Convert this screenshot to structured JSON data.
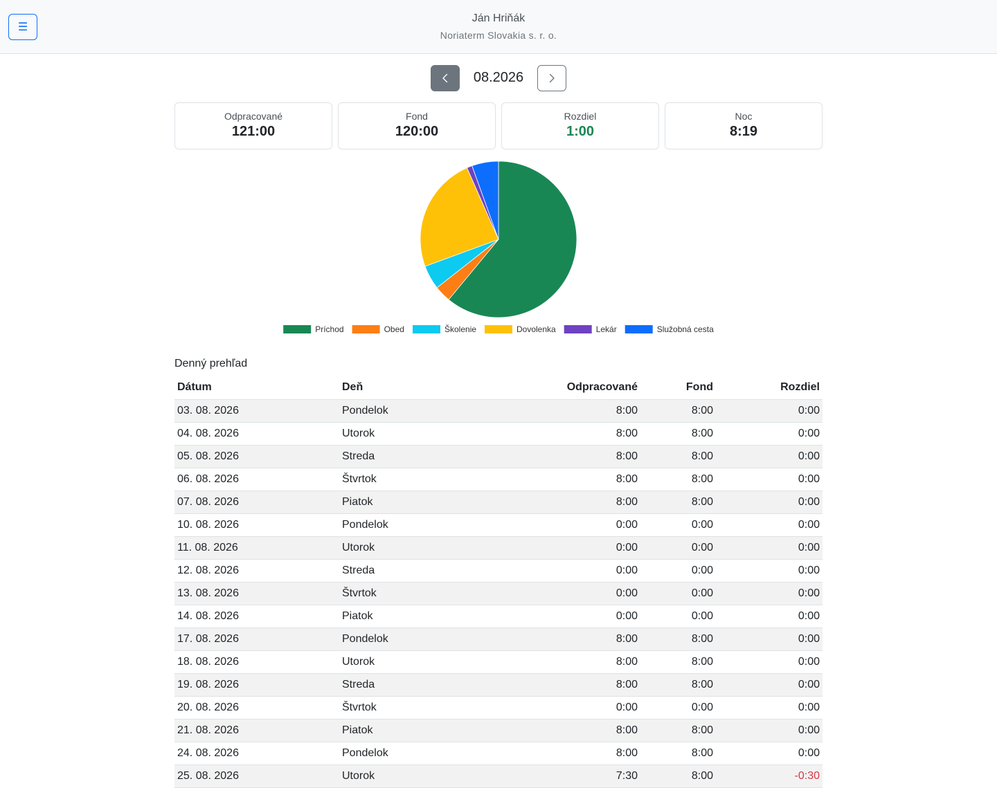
{
  "header": {
    "menu_icon": "☰",
    "user_name": "Ján Hriňák",
    "company": "Noriaterm Slovakia s. r. o."
  },
  "month_nav": {
    "label": "08.2026",
    "prev_icon": "chevron-left-icon",
    "next_icon": "chevron-right-icon"
  },
  "summary": {
    "worked_label": "Odpracované",
    "worked_value": "121:00",
    "fond_label": "Fond",
    "fond_value": "120:00",
    "diff_label": "Rozdiel",
    "diff_value": "1:00",
    "night_label": "Noc",
    "night_value": "8:19"
  },
  "colors": {
    "positive": "#198754",
    "negative": "#dc3545",
    "primary": "#0d6efd",
    "secondary": "#6c757d"
  },
  "chart_data": {
    "type": "pie",
    "slices": [
      {
        "name": "Príchod",
        "value": 61.0,
        "color": "#198754"
      },
      {
        "name": "Obed",
        "value": 3.4,
        "color": "#fd7e14"
      },
      {
        "name": "Školenie",
        "value": 5.0,
        "color": "#0dcaf0"
      },
      {
        "name": "Dovolenka",
        "value": 24.0,
        "color": "#ffc107"
      },
      {
        "name": "Lekár",
        "value": 1.1,
        "color": "#6f42c1"
      },
      {
        "name": "Služobná cesta",
        "value": 5.5,
        "color": "#0d6efd"
      }
    ],
    "legend": "bottom"
  },
  "daily": {
    "title": "Denný prehľad",
    "columns": [
      "Dátum",
      "Deň",
      "Odpracované",
      "Fond",
      "Rozdiel"
    ],
    "rows": [
      [
        "03. 08. 2026",
        "Pondelok",
        "8:00",
        "8:00",
        "0:00"
      ],
      [
        "04. 08. 2026",
        "Utorok",
        "8:00",
        "8:00",
        "0:00"
      ],
      [
        "05. 08. 2026",
        "Streda",
        "8:00",
        "8:00",
        "0:00"
      ],
      [
        "06. 08. 2026",
        "Štvrtok",
        "8:00",
        "8:00",
        "0:00"
      ],
      [
        "07. 08. 2026",
        "Piatok",
        "8:00",
        "8:00",
        "0:00"
      ],
      [
        "10. 08. 2026",
        "Pondelok",
        "0:00",
        "0:00",
        "0:00"
      ],
      [
        "11. 08. 2026",
        "Utorok",
        "0:00",
        "0:00",
        "0:00"
      ],
      [
        "12. 08. 2026",
        "Streda",
        "0:00",
        "0:00",
        "0:00"
      ],
      [
        "13. 08. 2026",
        "Štvrtok",
        "0:00",
        "0:00",
        "0:00"
      ],
      [
        "14. 08. 2026",
        "Piatok",
        "0:00",
        "0:00",
        "0:00"
      ],
      [
        "17. 08. 2026",
        "Pondelok",
        "8:00",
        "8:00",
        "0:00"
      ],
      [
        "18. 08. 2026",
        "Utorok",
        "8:00",
        "8:00",
        "0:00"
      ],
      [
        "19. 08. 2026",
        "Streda",
        "8:00",
        "8:00",
        "0:00"
      ],
      [
        "20. 08. 2026",
        "Štvrtok",
        "0:00",
        "0:00",
        "0:00"
      ],
      [
        "21. 08. 2026",
        "Piatok",
        "8:00",
        "8:00",
        "0:00"
      ],
      [
        "24. 08. 2026",
        "Pondelok",
        "8:00",
        "8:00",
        "0:00"
      ],
      [
        "25. 08. 2026",
        "Utorok",
        "7:30",
        "8:00",
        "-0:30"
      ]
    ]
  }
}
